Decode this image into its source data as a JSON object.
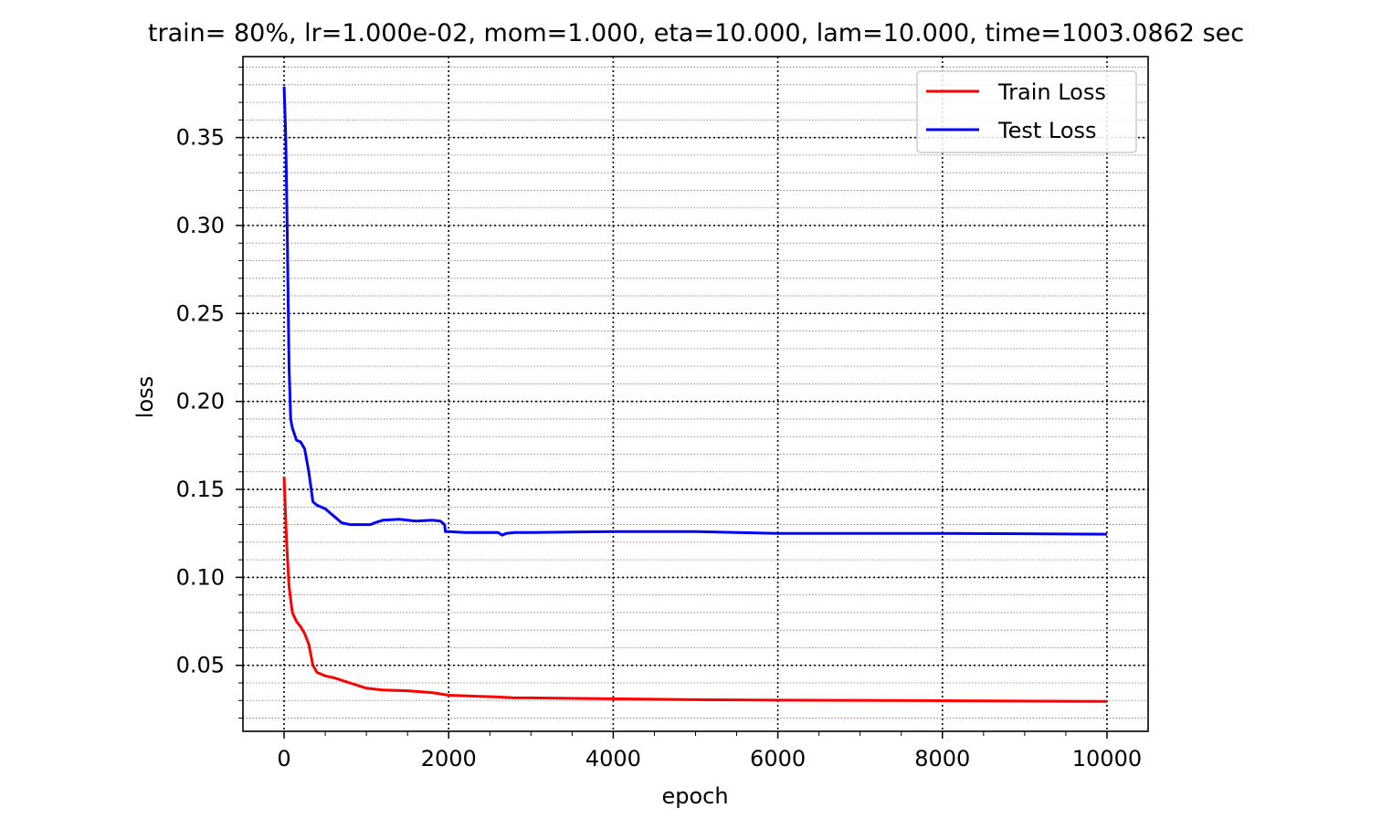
{
  "chart_data": {
    "type": "line",
    "title": "train= 80%, lr=1.000e-02, mom=1.000, eta=10.000, lam=10.000, time=1003.0862 sec",
    "xlabel": "epoch",
    "ylabel": "loss",
    "xlim": [
      -500,
      10500
    ],
    "ylim": [
      0.0125,
      0.396
    ],
    "xticks": [
      0,
      2000,
      4000,
      6000,
      8000,
      10000
    ],
    "xtick_labels": [
      "0",
      "2000",
      "4000",
      "6000",
      "8000",
      "10000"
    ],
    "yticks": [
      0.05,
      0.1,
      0.15,
      0.2,
      0.25,
      0.3,
      0.35
    ],
    "ytick_labels": [
      "0.05",
      "0.10",
      "0.15",
      "0.20",
      "0.25",
      "0.30",
      "0.35"
    ],
    "grid": true,
    "legend_position": "top-right",
    "series": [
      {
        "name": "Train Loss",
        "color": "#ff0000",
        "x": [
          0,
          30,
          60,
          100,
          150,
          200,
          250,
          300,
          350,
          400,
          500,
          600,
          800,
          1000,
          1200,
          1500,
          1800,
          2000,
          2300,
          2600,
          2800,
          3000,
          4000,
          5000,
          6000,
          7000,
          8000,
          9000,
          10000
        ],
        "y": [
          0.157,
          0.12,
          0.095,
          0.08,
          0.075,
          0.072,
          0.068,
          0.062,
          0.05,
          0.046,
          0.044,
          0.043,
          0.04,
          0.037,
          0.036,
          0.0355,
          0.0345,
          0.033,
          0.0325,
          0.032,
          0.0315,
          0.0315,
          0.031,
          0.0305,
          0.0302,
          0.0301,
          0.0299,
          0.0297,
          0.0295
        ]
      },
      {
        "name": "Test Loss",
        "color": "#0000ff",
        "x": [
          0,
          20,
          40,
          60,
          80,
          100,
          150,
          200,
          250,
          300,
          350,
          400,
          500,
          600,
          700,
          800,
          1000,
          1050,
          1100,
          1200,
          1400,
          1600,
          1800,
          1900,
          1950,
          1960,
          2000,
          2200,
          2400,
          2600,
          2650,
          2700,
          2800,
          3000,
          4000,
          5000,
          6000,
          7000,
          8000,
          9000,
          10000
        ],
        "y": [
          0.379,
          0.35,
          0.29,
          0.22,
          0.19,
          0.185,
          0.178,
          0.177,
          0.173,
          0.16,
          0.143,
          0.141,
          0.139,
          0.135,
          0.131,
          0.13,
          0.13,
          0.13,
          0.131,
          0.1325,
          0.133,
          0.132,
          0.1325,
          0.132,
          0.13,
          0.126,
          0.126,
          0.1255,
          0.1255,
          0.1255,
          0.124,
          0.125,
          0.1255,
          0.1255,
          0.126,
          0.126,
          0.125,
          0.125,
          0.125,
          0.1248,
          0.1245
        ]
      }
    ]
  }
}
